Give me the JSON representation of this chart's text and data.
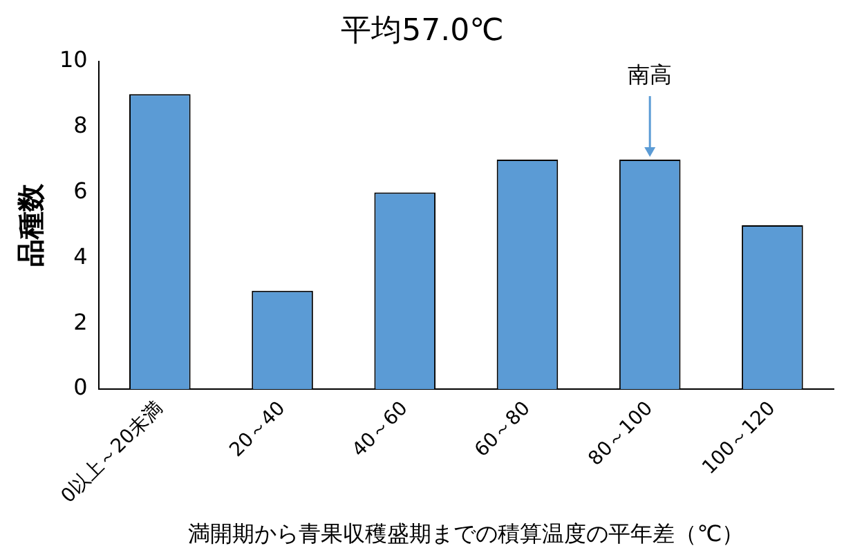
{
  "chart_data": {
    "type": "bar",
    "title": "平均57.0℃",
    "xlabel": "満開期から青果収穫盛期までの積算温度の平年差（℃）",
    "ylabel": "品種数",
    "categories": [
      "0以上～20未満",
      "20～40",
      "40～60",
      "60～80",
      "80～100",
      "100～120"
    ],
    "values": [
      9,
      3,
      6,
      7,
      7,
      5
    ],
    "color": "#5b9bd5",
    "ylim": [
      0,
      10
    ],
    "yticks": [
      0,
      2,
      4,
      6,
      8,
      10
    ],
    "grid": false,
    "legend": false,
    "annotations": [
      {
        "text": "南高",
        "x": "80～100",
        "y": 7
      }
    ]
  }
}
